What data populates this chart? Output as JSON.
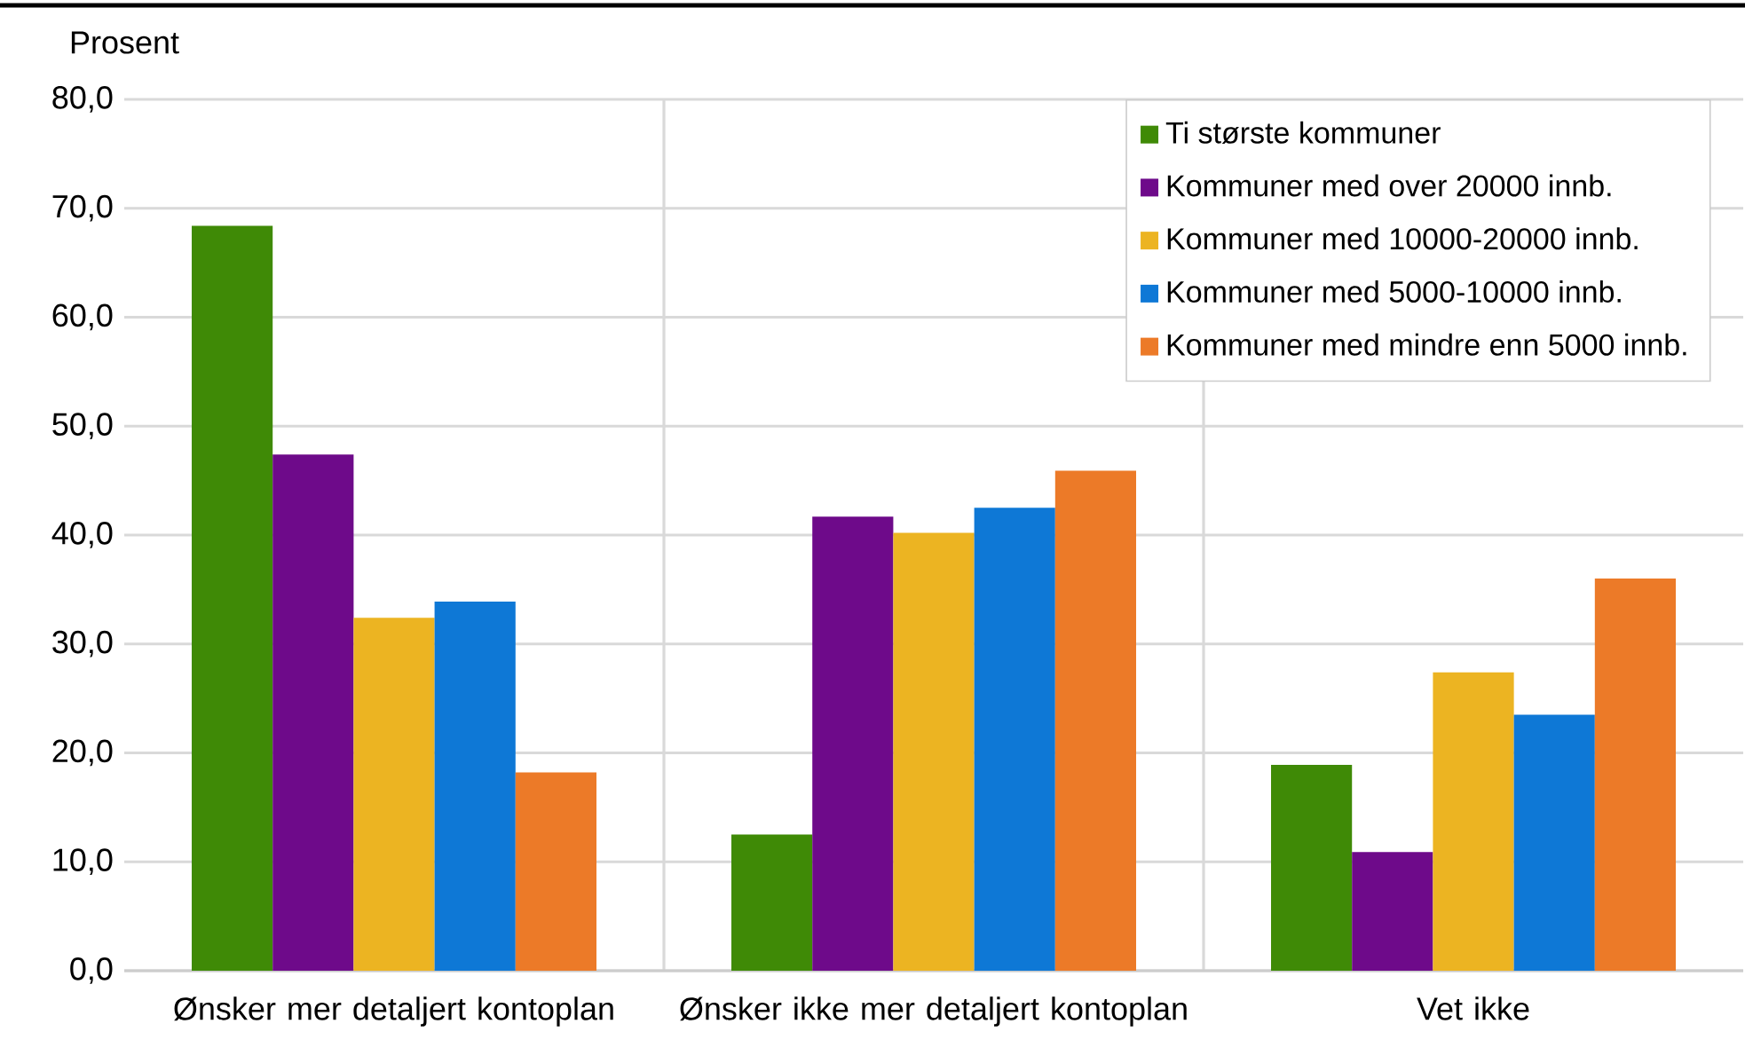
{
  "chart_data": {
    "type": "bar",
    "ylabel": "Prosent",
    "categories": [
      "Ønsker mer detaljert kontoplan",
      "Ønsker ikke mer detaljert kontoplan",
      "Vet ikke"
    ],
    "series": [
      {
        "name": "Ti største kommuner",
        "color": "#3f8a06",
        "values": [
          68.4,
          12.5,
          18.9
        ]
      },
      {
        "name": "Kommuner med over 20000 innb.",
        "color": "#6e0a8a",
        "values": [
          47.4,
          41.7,
          10.9
        ]
      },
      {
        "name": "Kommuner med 10000-20000 innb.",
        "color": "#ecb422",
        "values": [
          32.4,
          40.2,
          27.4
        ]
      },
      {
        "name": "Kommuner med 5000-10000 innb.",
        "color": "#0e78d6",
        "values": [
          33.9,
          42.5,
          23.5
        ]
      },
      {
        "name": "Kommuner med mindre enn 5000 innb.",
        "color": "#ec7a28",
        "values": [
          18.2,
          45.9,
          36.0
        ]
      }
    ],
    "ylim": [
      0,
      80
    ],
    "yticks": [
      {
        "value": 0,
        "label": "0,0"
      },
      {
        "value": 10,
        "label": "10,0"
      },
      {
        "value": 20,
        "label": "20,0"
      },
      {
        "value": 30,
        "label": "30,0"
      },
      {
        "value": 40,
        "label": "40,0"
      },
      {
        "value": 50,
        "label": "50,0"
      },
      {
        "value": 60,
        "label": "60,0"
      },
      {
        "value": 70,
        "label": "70,0"
      },
      {
        "value": 80,
        "label": "80,0"
      }
    ],
    "grid": true,
    "legend": "top right"
  }
}
